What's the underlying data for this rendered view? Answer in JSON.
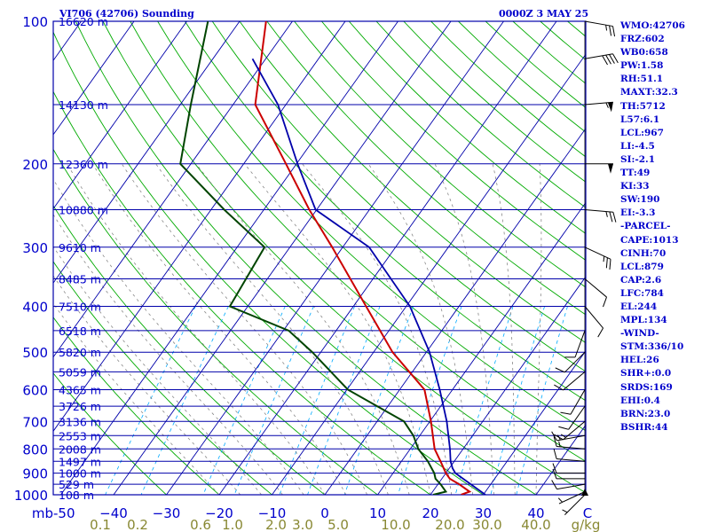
{
  "header": {
    "title": "VI706 (42706) Sounding",
    "time": "0000Z  3 MAY 25"
  },
  "indices": [
    "WMO:42706",
    "FRZ:602",
    "WB0:658",
    "PW:1.58",
    "RH:51.1",
    "MAXT:32.3",
    "TH:5712",
    "L57:6.1",
    "LCL:967",
    "LI:-4.5",
    "SI:-2.1",
    "TT:49",
    "KI:33",
    "SW:190",
    "EI:-3.3",
    "-PARCEL-",
    "CAPE:1013",
    "CINH:70",
    "LCL:879",
    "CAP:2.6",
    "LFC:784",
    "EL:244",
    "MPL:134",
    "-WIND-",
    "STM:336/10",
    "HEL:26",
    "SHR+:0.0",
    "SRDS:169",
    "EHI:0.4",
    "BRN:23.0",
    "BSHR:44"
  ],
  "colors": {
    "axis_text": "#0000cc",
    "isobar": "#0000aa",
    "isotherm": "#0000aa",
    "dry_adiabat": "#00aa00",
    "moist_adiabat": "#888888",
    "mixing_ratio": "#00aaff",
    "temperature": "#cc0000",
    "dewpoint": "#004400",
    "parcel": "#0000aa",
    "wind_barb": "#000000",
    "mixing_ratio_text": "#888833"
  },
  "chart_data": {
    "type": "line",
    "title": "",
    "xlabel": "",
    "ylabel": "mb",
    "pressure_ticks": [
      100,
      200,
      300,
      400,
      500,
      600,
      700,
      800,
      900,
      1000
    ],
    "temperature_ticks": [
      -50,
      -40,
      -30,
      -20,
      -10,
      0,
      10,
      20,
      30,
      40
    ],
    "temperature_tick_labels": [
      "mb-50",
      "−40",
      "−30",
      "−20",
      "−10",
      "0",
      "10",
      "20",
      "30",
      "40"
    ],
    "temperature_unit": "C",
    "mixing_ratio_labels": [
      "0.1",
      "0.2",
      "0.6",
      "1.0",
      "2.0",
      "3.0",
      "5.0",
      "10.0",
      "20.0",
      "30.0",
      "40.0"
    ],
    "mixing_ratio_unit": "g/kg",
    "height_labels": [
      {
        "p": 100,
        "text": "16620 m"
      },
      {
        "p": 150,
        "text": "14130 m"
      },
      {
        "p": 200,
        "text": "12360 m"
      },
      {
        "p": 250,
        "text": "10880 m"
      },
      {
        "p": 300,
        "text": "9610 m"
      },
      {
        "p": 350,
        "text": "8485 m"
      },
      {
        "p": 400,
        "text": "7510 m"
      },
      {
        "p": 450,
        "text": "6518 m"
      },
      {
        "p": 500,
        "text": "5820 m"
      },
      {
        "p": 550,
        "text": "5059 m"
      },
      {
        "p": 600,
        "text": "4365 m"
      },
      {
        "p": 650,
        "text": "3726 m"
      },
      {
        "p": 700,
        "text": "3136 m"
      },
      {
        "p": 750,
        "text": "2553 m"
      },
      {
        "p": 800,
        "text": "2008 m"
      },
      {
        "p": 850,
        "text": "1497 m"
      },
      {
        "p": 900,
        "text": "1000 m"
      },
      {
        "p": 950,
        "text": "529 m"
      },
      {
        "p": 1000,
        "text": "108 m"
      }
    ],
    "p_range": [
      100,
      1000
    ],
    "t_range_at_bottom": [
      -50,
      50
    ],
    "series": [
      {
        "role": "temperature",
        "points": [
          [
            1000,
            25.8
          ],
          [
            985,
            27
          ],
          [
            950,
            24
          ],
          [
            925,
            21.5
          ],
          [
            900,
            20.0
          ],
          [
            850,
            17.4
          ],
          [
            800,
            14.6
          ],
          [
            700,
            10.2
          ],
          [
            600,
            4.7
          ],
          [
            500,
            -6.4
          ],
          [
            400,
            -17.6
          ],
          [
            300,
            -32.0
          ],
          [
            250,
            -41.4
          ],
          [
            200,
            -52.0
          ],
          [
            150,
            -65.8
          ],
          [
            100,
            -75.0
          ]
        ]
      },
      {
        "role": "dewpoint",
        "points": [
          [
            1000,
            20.5
          ],
          [
            985,
            22.5
          ],
          [
            950,
            20.5
          ],
          [
            925,
            18.8
          ],
          [
            900,
            17.8
          ],
          [
            850,
            15.0
          ],
          [
            800,
            11.5
          ],
          [
            750,
            8.8
          ],
          [
            700,
            5.1
          ],
          [
            600,
            -9.8
          ],
          [
            500,
            -21.6
          ],
          [
            450,
            -29.0
          ],
          [
            400,
            -43.4
          ],
          [
            300,
            -44.8
          ],
          [
            250,
            -57.5
          ],
          [
            200,
            -72.0
          ],
          [
            150,
            -78.0
          ],
          [
            100,
            -86.0
          ]
        ]
      },
      {
        "role": "parcel",
        "points": [
          [
            1000,
            30.4
          ],
          [
            900,
            21.8
          ],
          [
            879,
            20.6
          ],
          [
            850,
            19.3
          ],
          [
            800,
            17.5
          ],
          [
            700,
            13.2
          ],
          [
            600,
            7.6
          ],
          [
            500,
            0.6
          ],
          [
            400,
            -9.3
          ],
          [
            300,
            -25.0
          ],
          [
            250,
            -40.2
          ],
          [
            200,
            -49.8
          ],
          [
            150,
            -61.5
          ],
          [
            120,
            -72.5
          ]
        ]
      }
    ],
    "winds": [
      {
        "p": 1000,
        "dir": 225,
        "spd": 5
      },
      {
        "p": 985,
        "dir": 245,
        "spd": 5
      },
      {
        "p": 950,
        "dir": 260,
        "spd": 10
      },
      {
        "p": 925,
        "dir": 270,
        "spd": 10
      },
      {
        "p": 900,
        "dir": 270,
        "spd": 10
      },
      {
        "p": 850,
        "dir": 275,
        "spd": 10
      },
      {
        "p": 800,
        "dir": 275,
        "spd": 15
      },
      {
        "p": 750,
        "dir": 260,
        "spd": 15
      },
      {
        "p": 700,
        "dir": 230,
        "spd": 15
      },
      {
        "p": 650,
        "dir": 215,
        "spd": 10
      },
      {
        "p": 600,
        "dir": 210,
        "spd": 10
      },
      {
        "p": 550,
        "dir": 230,
        "spd": 10
      },
      {
        "p": 500,
        "dir": 225,
        "spd": 10
      },
      {
        "p": 450,
        "dir": 200,
        "spd": 10
      },
      {
        "p": 400,
        "dir": 140,
        "spd": 10
      },
      {
        "p": 350,
        "dir": 130,
        "spd": 10
      },
      {
        "p": 300,
        "dir": 115,
        "spd": 25
      },
      {
        "p": 250,
        "dir": 95,
        "spd": 25
      },
      {
        "p": 200,
        "dir": 90,
        "spd": 50
      },
      {
        "p": 150,
        "dir": 85,
        "spd": 55
      },
      {
        "p": 120,
        "dir": 80,
        "spd": 40
      },
      {
        "p": 100,
        "dir": 100,
        "spd": 25
      }
    ]
  }
}
